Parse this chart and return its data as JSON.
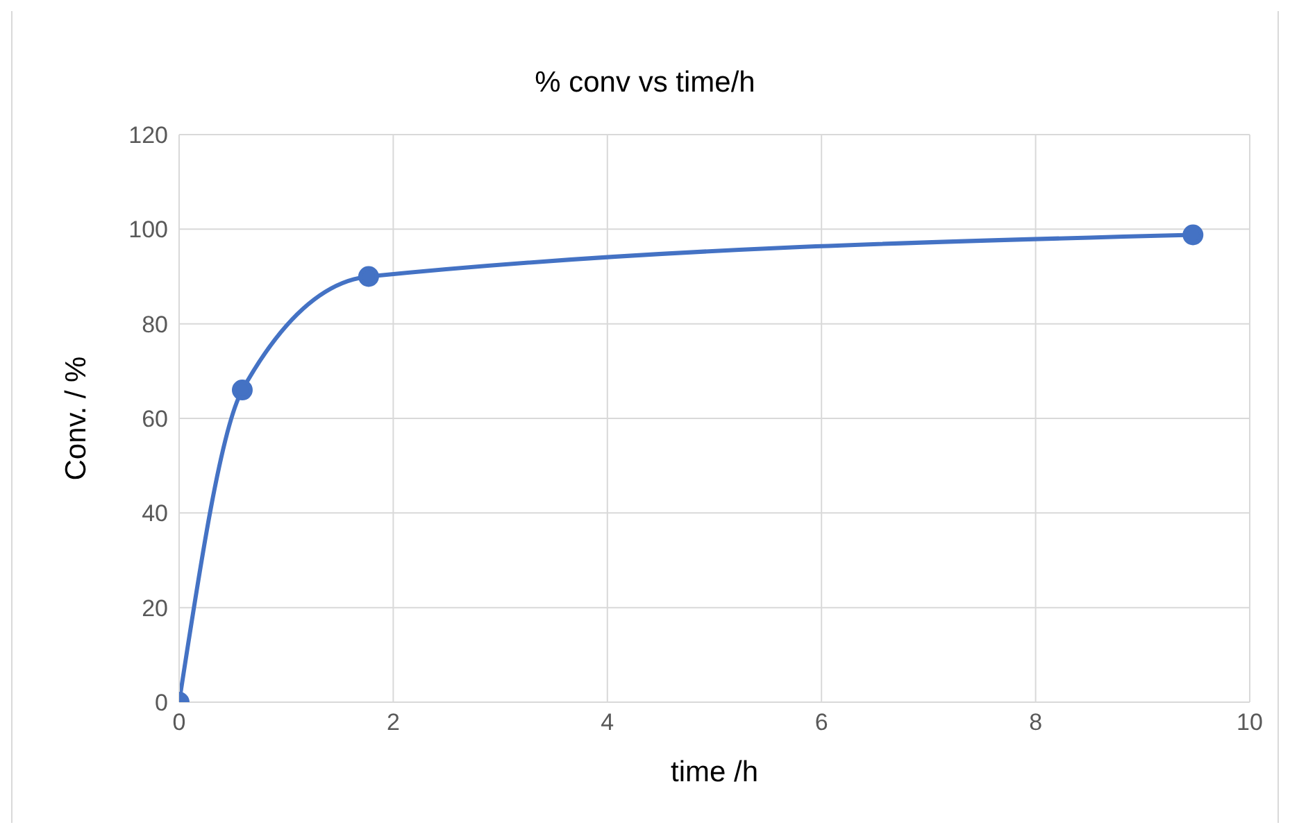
{
  "chart_data": {
    "type": "line",
    "title": "% conv vs time/h",
    "xlabel": "time /h",
    "ylabel": "Conv. / %",
    "x": [
      0,
      0.59,
      1.77,
      9.47
    ],
    "series": [
      {
        "color": "#4472c4",
        "values": [
          0,
          66,
          90,
          98.8
        ]
      }
    ],
    "xlim": [
      0,
      10
    ],
    "xticks": [
      0,
      2,
      4,
      6,
      8,
      10
    ],
    "ylim": [
      0,
      120
    ],
    "yticks": [
      0,
      20,
      40,
      60,
      80,
      100,
      120
    ],
    "grid": true,
    "marker": "circle",
    "line_style": "solid"
  }
}
